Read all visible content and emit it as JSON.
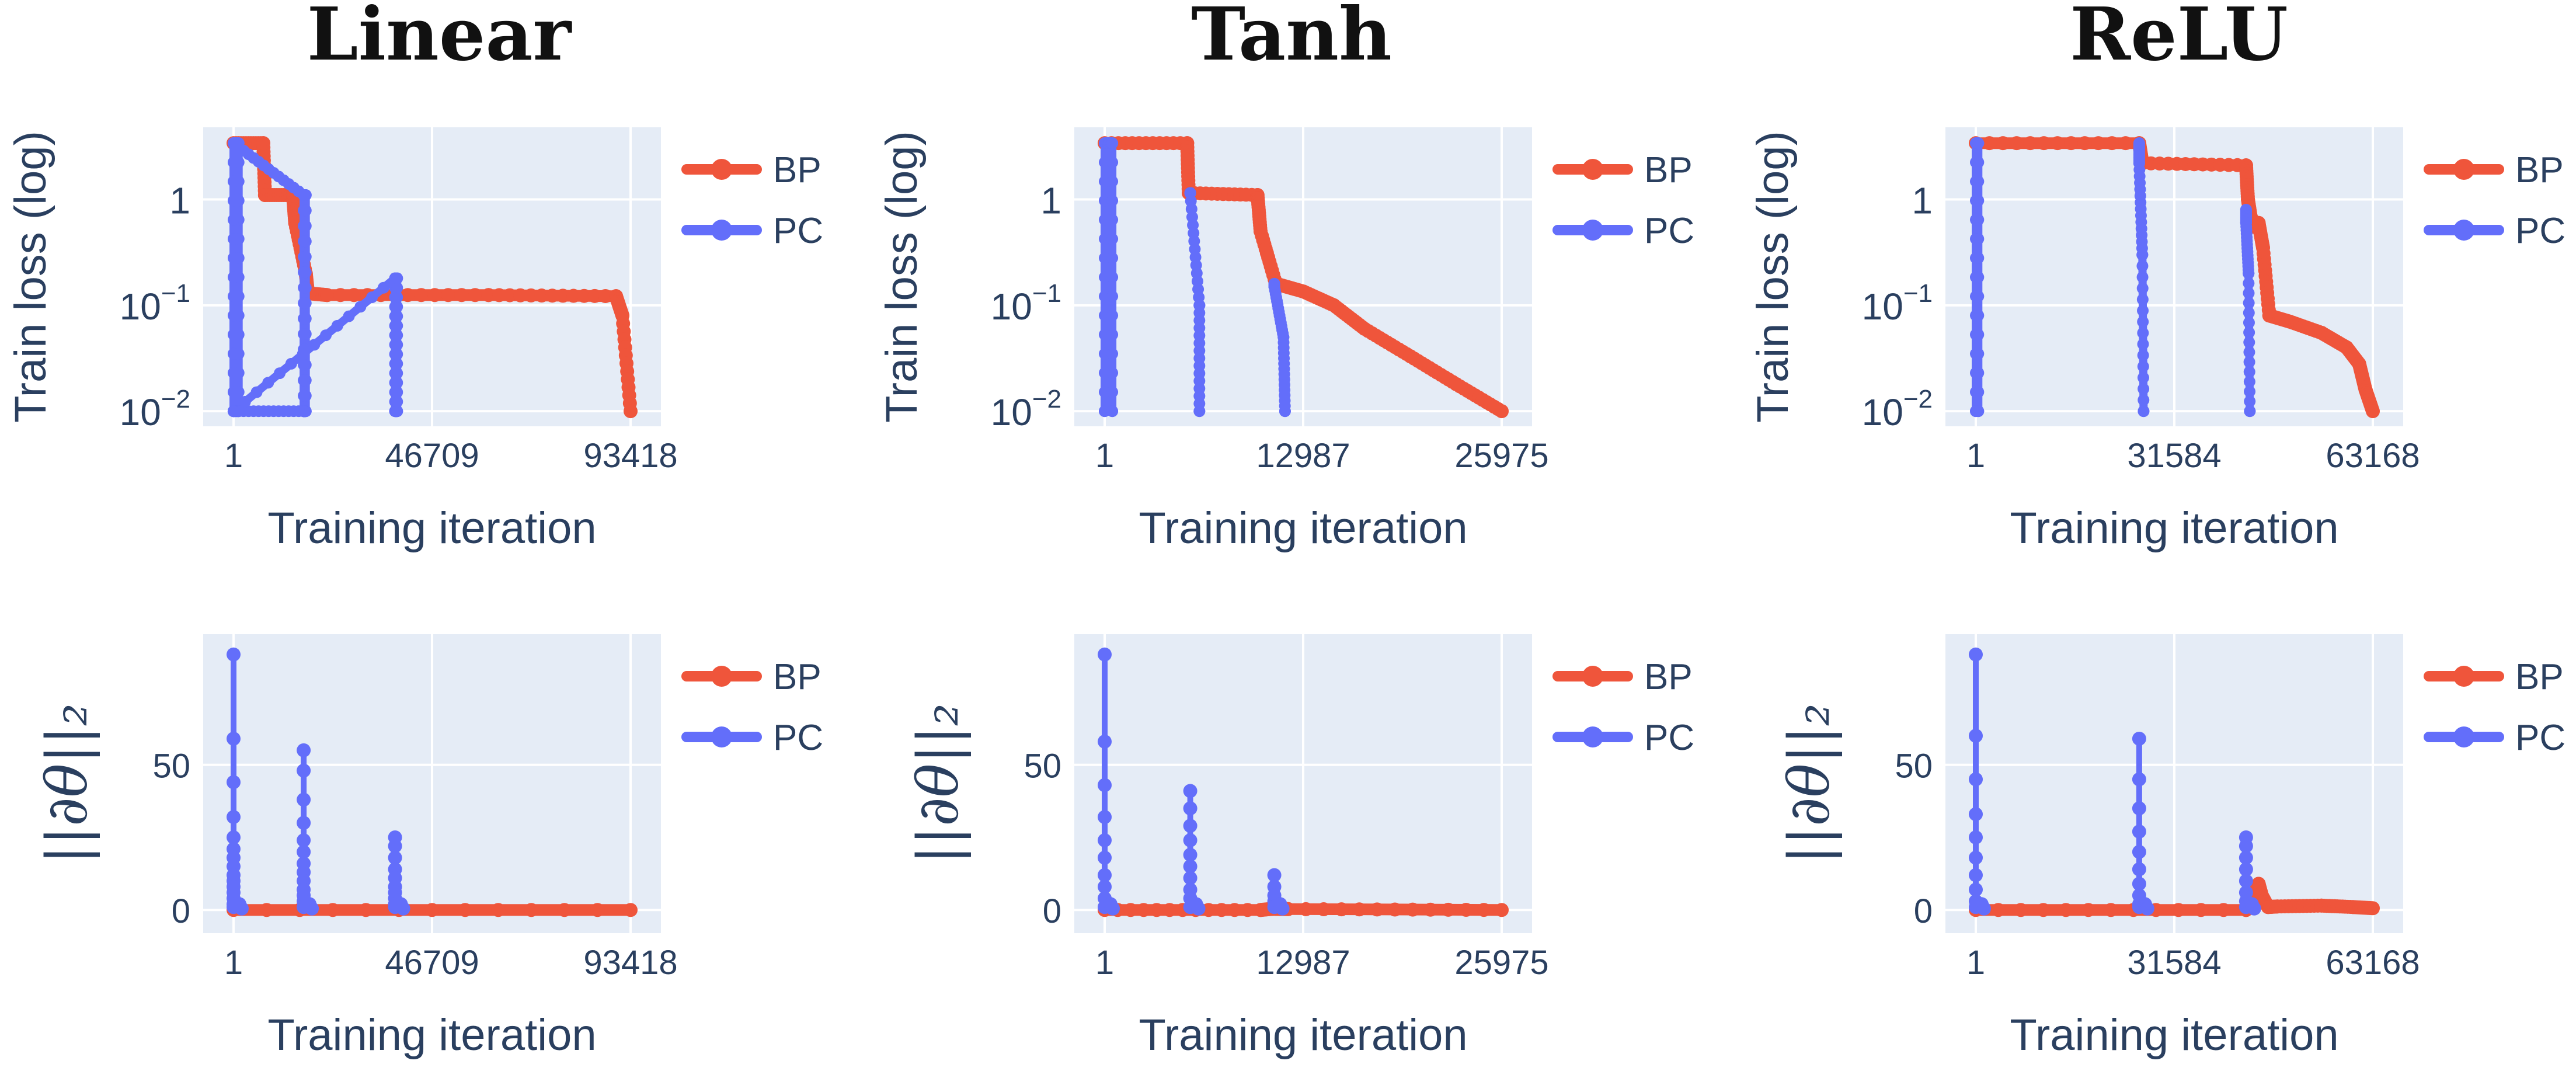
{
  "chart_data": [
    {
      "id": "linear-loss",
      "column_title": "Linear",
      "type": "line",
      "y_scale": "log",
      "ylabel": "Train loss (log)",
      "xlabel": "Training iteration",
      "x_ticks": [
        "1",
        "46709",
        "93418"
      ],
      "y_ticks": [
        "1",
        "10",
        "10"
      ],
      "y_tick_exponents": [
        "",
        "−1",
        "−2"
      ],
      "xlim": [
        1,
        93418
      ],
      "ylim": [
        0.0072,
        4.8
      ],
      "legend": [
        "BP",
        "PC"
      ],
      "series": [
        {
          "name": "BP",
          "color": "#ef553b",
          "x": [
            1,
            7000,
            7400,
            14000,
            14500,
            17000,
            17500,
            22000,
            60000,
            90000,
            91500,
            93418
          ],
          "y": [
            3.4,
            3.4,
            1.1,
            1.1,
            0.6,
            0.2,
            0.13,
            0.125,
            0.125,
            0.122,
            0.08,
            0.01
          ]
        },
        {
          "name": "PC",
          "color": "#636efa",
          "x": [
            1,
            1,
            1200,
            1200,
            1,
            1,
            16500,
            16500,
            17000,
            17000,
            16500,
            16500,
            1,
            1,
            38000,
            38000,
            38500,
            38500
          ],
          "y": [
            0.01,
            3.4,
            3.4,
            0.01,
            0.01,
            3.4,
            1.1,
            0.01,
            0.01,
            1.1,
            0.01,
            0.01,
            0.01,
            0.01,
            0.18,
            0.01,
            0.01,
            0.18
          ]
        }
      ]
    },
    {
      "id": "tanh-loss",
      "column_title": "Tanh",
      "type": "line",
      "y_scale": "log",
      "ylabel": "Train loss (log)",
      "xlabel": "Training iteration",
      "x_ticks": [
        "1",
        "12987",
        "25975"
      ],
      "y_ticks": [
        "1",
        "10",
        "10"
      ],
      "y_tick_exponents": [
        "",
        "−1",
        "−2"
      ],
      "xlim": [
        1,
        25975
      ],
      "ylim": [
        0.0072,
        4.8
      ],
      "legend": [
        "BP",
        "PC"
      ],
      "series": [
        {
          "name": "BP",
          "color": "#ef553b",
          "x": [
            1,
            5400,
            5500,
            10000,
            10200,
            11200,
            13000,
            15000,
            17000,
            20000,
            23000,
            25975
          ],
          "y": [
            3.4,
            3.4,
            1.15,
            1.1,
            0.5,
            0.16,
            0.135,
            0.1,
            0.06,
            0.033,
            0.018,
            0.01
          ]
        },
        {
          "name": "PC",
          "color": "#636efa",
          "x": [
            1,
            1,
            500,
            500
          ],
          "y": [
            0.01,
            3.4,
            3.4,
            0.01
          ]
        },
        {
          "name": "PC",
          "color": "#636efa",
          "x": [
            5600,
            5600,
            6200,
            6200
          ],
          "y": [
            1.15,
            1.15,
            0.1,
            0.01
          ]
        },
        {
          "name": "PC",
          "color": "#636efa",
          "x": [
            11100,
            11100,
            11700,
            11800
          ],
          "y": [
            0.16,
            0.15,
            0.05,
            0.01
          ]
        }
      ]
    },
    {
      "id": "relu-loss",
      "column_title": "ReLU",
      "type": "line",
      "y_scale": "log",
      "ylabel": "Train loss (log)",
      "xlabel": "Training iteration",
      "x_ticks": [
        "1",
        "31584",
        "63168"
      ],
      "y_ticks": [
        "1",
        "10",
        "10"
      ],
      "y_tick_exponents": [
        "",
        "−1",
        "−2"
      ],
      "xlim": [
        1,
        63168
      ],
      "ylim": [
        0.0072,
        4.8
      ],
      "legend": [
        "BP",
        "PC"
      ],
      "series": [
        {
          "name": "BP",
          "color": "#ef553b",
          "x": [
            1,
            26000,
            26500,
            43000,
            43300,
            43700,
            44300,
            45000,
            45700,
            46700,
            50000,
            55000,
            59000,
            61000,
            62000,
            63168
          ],
          "y": [
            3.4,
            3.4,
            2.2,
            2.1,
            1.0,
            0.7,
            0.55,
            0.6,
            0.35,
            0.08,
            0.07,
            0.055,
            0.04,
            0.028,
            0.016,
            0.01
          ]
        },
        {
          "name": "PC",
          "color": "#636efa",
          "x": [
            1,
            1,
            400,
            400
          ],
          "y": [
            0.01,
            3.4,
            3.4,
            0.01
          ]
        },
        {
          "name": "PC",
          "color": "#636efa",
          "x": [
            26000,
            26000,
            26500,
            26700
          ],
          "y": [
            3.4,
            2.2,
            0.3,
            0.01
          ]
        },
        {
          "name": "PC",
          "color": "#636efa",
          "x": [
            43000,
            43000,
            43400,
            43600
          ],
          "y": [
            0.8,
            0.6,
            0.2,
            0.01
          ]
        }
      ]
    },
    {
      "id": "linear-grad",
      "column_title": "Linear",
      "type": "line",
      "y_scale": "linear",
      "ylabel": "||∂θ||₂",
      "xlabel": "Training iteration",
      "x_ticks": [
        "1",
        "46709",
        "93418"
      ],
      "y_ticks": [
        "0",
        "50"
      ],
      "xlim": [
        1,
        93418
      ],
      "ylim": [
        -8,
        95
      ],
      "legend": [
        "BP",
        "PC"
      ],
      "series": [
        {
          "name": "BP",
          "color": "#ef553b",
          "x": [
            1,
            93418
          ],
          "y": [
            0,
            0
          ]
        },
        {
          "name": "PC",
          "color": "#636efa",
          "x": [
            1,
            1,
            1,
            1,
            1,
            1,
            1,
            1,
            1,
            1,
            1,
            1,
            1,
            1,
            1,
            1,
            1,
            1,
            1,
            1,
            1,
            1,
            1,
            1,
            1,
            1,
            1,
            1,
            1,
            1,
            1,
            1,
            1,
            1,
            1,
            1,
            1,
            1,
            1,
            1,
            1,
            1,
            1,
            1,
            1,
            1,
            1,
            1,
            1,
            1,
            1,
            1,
            1,
            1,
            1,
            1,
            1,
            1,
            1,
            1,
            1,
            1,
            1,
            1,
            1,
            1,
            1,
            1,
            1,
            1,
            1,
            1,
            1,
            1,
            1,
            1,
            1,
            1,
            1,
            1,
            1,
            1,
            1,
            1,
            1,
            1,
            1,
            1,
            1,
            1,
            1,
            1,
            1,
            1,
            1,
            1,
            1,
            1,
            1,
            1,
            1,
            1,
            1,
            1,
            1,
            1,
            1,
            1,
            1,
            1,
            1,
            1,
            1,
            1,
            1,
            1,
            1,
            1,
            1,
            1,
            1,
            1,
            1,
            1,
            1,
            1,
            1,
            1,
            1,
            1,
            1,
            1,
            1,
            1,
            1,
            1,
            1,
            1,
            1,
            1,
            1,
            1,
            1,
            1,
            1,
            1,
            1,
            1,
            1,
            1,
            1,
            1,
            1,
            1,
            1,
            1,
            1,
            1,
            1,
            1,
            1,
            1,
            1,
            1,
            1,
            1,
            1,
            1,
            1,
            1,
            1,
            1,
            1,
            1,
            1,
            1,
            1,
            1,
            1,
            1,
            1,
            1,
            1,
            1,
            1,
            1,
            1,
            1,
            1,
            1,
            1,
            1,
            1,
            1,
            1,
            1,
            1,
            1,
            1,
            1,
            1
          ],
          "y": [
            88,
            59,
            44,
            32,
            25,
            21,
            18,
            15,
            12,
            10,
            8,
            6,
            4,
            2,
            1,
            0.5,
            0,
            0,
            0,
            0,
            0,
            0,
            0,
            0,
            0,
            0,
            0,
            0,
            0,
            0,
            0,
            0,
            0,
            0,
            0,
            0,
            0,
            0,
            0,
            0,
            0,
            0,
            0,
            0,
            0,
            0,
            0,
            0,
            0,
            0,
            0,
            0,
            0,
            0,
            0,
            0,
            0,
            0,
            0,
            0,
            0,
            0,
            0,
            0,
            0,
            0,
            0,
            0,
            0,
            0,
            0,
            0,
            0,
            0,
            0,
            0,
            0,
            0,
            0,
            0,
            0,
            0,
            0,
            0,
            0,
            0,
            0,
            0,
            0,
            0,
            0,
            0,
            0,
            0,
            0,
            0,
            0,
            0,
            0,
            0,
            0,
            0,
            0,
            0,
            0,
            0,
            0,
            0,
            0,
            0,
            0,
            0,
            0,
            0,
            0,
            0,
            0,
            0,
            0,
            0,
            0,
            0,
            0,
            0,
            0,
            0,
            0,
            0,
            0,
            0,
            0,
            0,
            0,
            0,
            0,
            0,
            0,
            0,
            0,
            0,
            0,
            0,
            0,
            0,
            0,
            0,
            0,
            0,
            0,
            0,
            0,
            0,
            0,
            0,
            0,
            0,
            0,
            0,
            0,
            0,
            0,
            0,
            0,
            0,
            0,
            0,
            0,
            0,
            0,
            0,
            0,
            0,
            0,
            0,
            0,
            0,
            0,
            0,
            0,
            0,
            0,
            0,
            0,
            0,
            0,
            0,
            0,
            0,
            0,
            0,
            0,
            0,
            0,
            0,
            0,
            0,
            0,
            0,
            0,
            0,
            0
          ]
        }
      ],
      "spikes": [
        {
          "x": 1,
          "values": [
            88,
            59,
            44,
            32,
            25,
            21,
            18,
            15,
            12,
            10,
            8,
            6,
            4,
            2,
            1
          ]
        },
        {
          "x": 16500,
          "values": [
            55,
            48,
            38,
            30,
            24,
            20,
            16,
            13,
            10,
            7,
            5,
            3,
            1
          ]
        },
        {
          "x": 38000,
          "values": [
            25,
            22,
            18,
            14,
            11,
            8,
            6,
            4,
            2,
            1
          ]
        }
      ]
    },
    {
      "id": "tanh-grad",
      "column_title": "Tanh",
      "type": "line",
      "y_scale": "linear",
      "ylabel": "||∂θ||₂",
      "xlabel": "Training iteration",
      "x_ticks": [
        "1",
        "12987",
        "25975"
      ],
      "y_ticks": [
        "0",
        "50"
      ],
      "xlim": [
        1,
        25975
      ],
      "ylim": [
        -8,
        95
      ],
      "legend": [
        "BP",
        "PC"
      ],
      "series": [
        {
          "name": "BP",
          "color": "#ef553b",
          "x": [
            1,
            10200,
            11000,
            12000,
            25975
          ],
          "y": [
            0,
            0,
            0.4,
            0.3,
            0
          ]
        }
      ],
      "spikes": [
        {
          "x": 1,
          "values": [
            88,
            58,
            43,
            32,
            24,
            18,
            12,
            8,
            4,
            1
          ]
        },
        {
          "x": 5600,
          "values": [
            41,
            35,
            29,
            24,
            19,
            15,
            11,
            7,
            4,
            1
          ]
        },
        {
          "x": 11100,
          "values": [
            12,
            8,
            5,
            3,
            1
          ]
        }
      ]
    },
    {
      "id": "relu-grad",
      "column_title": "ReLU",
      "type": "line",
      "y_scale": "linear",
      "ylabel": "||∂θ||₂",
      "xlabel": "Training iteration",
      "x_ticks": [
        "1",
        "31584",
        "63168"
      ],
      "y_ticks": [
        "0",
        "50"
      ],
      "xlim": [
        1,
        63168
      ],
      "ylim": [
        -8,
        95
      ],
      "legend": [
        "BP",
        "PC"
      ],
      "series": [
        {
          "name": "BP",
          "color": "#ef553b",
          "x": [
            1,
            43000,
            44000,
            45000,
            45500,
            46500,
            48000,
            55000,
            60000,
            63168
          ],
          "y": [
            0,
            0,
            3,
            9,
            5,
            1,
            1.2,
            1.5,
            1.0,
            0.6
          ]
        }
      ],
      "spikes": [
        {
          "x": 1,
          "values": [
            88,
            60,
            45,
            33,
            25,
            18,
            12,
            7,
            3,
            1
          ]
        },
        {
          "x": 26000,
          "values": [
            59,
            45,
            35,
            27,
            20,
            14,
            9,
            5,
            2,
            1
          ]
        },
        {
          "x": 43000,
          "values": [
            25,
            22,
            18,
            14,
            10,
            6,
            3,
            1
          ]
        }
      ]
    }
  ]
}
